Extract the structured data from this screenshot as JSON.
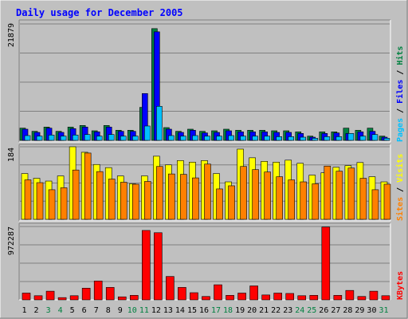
{
  "chart_data": {
    "type": "bar",
    "title": "Daily usage for December 2005",
    "days": [
      "1",
      "2",
      "3",
      "4",
      "5",
      "6",
      "7",
      "8",
      "9",
      "10",
      "11",
      "12",
      "13",
      "14",
      "15",
      "16",
      "17",
      "18",
      "19",
      "20",
      "21",
      "22",
      "23",
      "24",
      "25",
      "26",
      "27",
      "28",
      "29",
      "30",
      "31"
    ],
    "weekend_days": [
      "3",
      "4",
      "10",
      "11",
      "17",
      "18",
      "24",
      "25",
      "31"
    ],
    "panels": [
      {
        "id": "hits",
        "max_label": "21879",
        "ymax": 21879,
        "right_labels": [
          {
            "text": "Pages",
            "color": "#00c0ff"
          },
          {
            "text": "Files",
            "color": "#0000ff"
          },
          {
            "text": "Hits",
            "color": "#008040"
          }
        ],
        "series": [
          {
            "name": "Hits",
            "color": "#008040",
            "values": [
              2300,
              1700,
              2500,
              1700,
              2500,
              2800,
              1800,
              2800,
              1900,
              1900,
              6200,
              21000,
              2400,
              1700,
              2100,
              1700,
              1800,
              2100,
              1900,
              1900,
              1900,
              1800,
              1800,
              1600,
              800,
              1600,
              1600,
              2300,
              1900,
              2300,
              800
            ]
          },
          {
            "name": "Files",
            "color": "#0000ff",
            "values": [
              2100,
              1500,
              2300,
              1500,
              2200,
              2500,
              1600,
              2500,
              1700,
              1700,
              8800,
              20400,
              2100,
              1500,
              1900,
              1400,
              1500,
              1800,
              1600,
              1600,
              1600,
              1500,
              1500,
              1300,
              600,
              1300,
              1400,
              1300,
              1600,
              1700,
              600
            ]
          },
          {
            "name": "Pages",
            "color": "#00c0ff",
            "values": [
              900,
              800,
              1000,
              800,
              1000,
              1100,
              800,
              1100,
              800,
              800,
              2700,
              6400,
              900,
              800,
              900,
              800,
              800,
              900,
              800,
              800,
              800,
              700,
              700,
              600,
              400,
              700,
              700,
              1300,
              800,
              1100,
              400
            ]
          }
        ]
      },
      {
        "id": "visits",
        "max_label": "184",
        "ymax": 184,
        "right_labels": [
          {
            "text": "Sites",
            "color": "#ff8000"
          },
          {
            "text": "Visits",
            "color": "#ffff00"
          }
        ],
        "series": [
          {
            "name": "Visits",
            "color": "#ffff00",
            "values": [
              116,
              104,
              97,
              110,
              184,
              170,
              139,
              131,
              110,
              90,
              110,
              160,
              138,
              149,
              145,
              149,
              116,
              95,
              178,
              156,
              147,
              145,
              150,
              142,
              112,
              118,
              132,
              136,
              144,
              108,
              95
            ]
          },
          {
            "name": "Sites",
            "color": "#ff8000",
            "values": [
              100,
              93,
              75,
              80,
              125,
              168,
              121,
              102,
              94,
              89,
              96,
              134,
              115,
              114,
              105,
              140,
              77,
              85,
              134,
              126,
              120,
              108,
              100,
              95,
              90,
              135,
              122,
              130,
              104,
              75,
              89
            ]
          }
        ]
      },
      {
        "id": "kbytes",
        "max_label": "972287",
        "ymax": 972287,
        "right_labels": [
          {
            "text": "KBytes",
            "color": "#ff0000"
          }
        ],
        "series": [
          {
            "name": "KBytes",
            "color": "#ff0000",
            "values": [
              90000,
              55000,
              115000,
              30000,
              55000,
              155000,
              250000,
              165000,
              40000,
              60000,
              920000,
              890000,
              310000,
              165000,
              95000,
              45000,
              200000,
              60000,
              90000,
              185000,
              65000,
              90000,
              85000,
              55000,
              60000,
              965000,
              60000,
              125000,
              45000,
              115000,
              55000
            ]
          }
        ]
      }
    ]
  },
  "colors": {
    "background": "#c0c0c0",
    "panel": "#c0c0c0",
    "grid": "#808080",
    "title": "#0000ff",
    "weekday": "#000000",
    "weekend": "#008040"
  }
}
